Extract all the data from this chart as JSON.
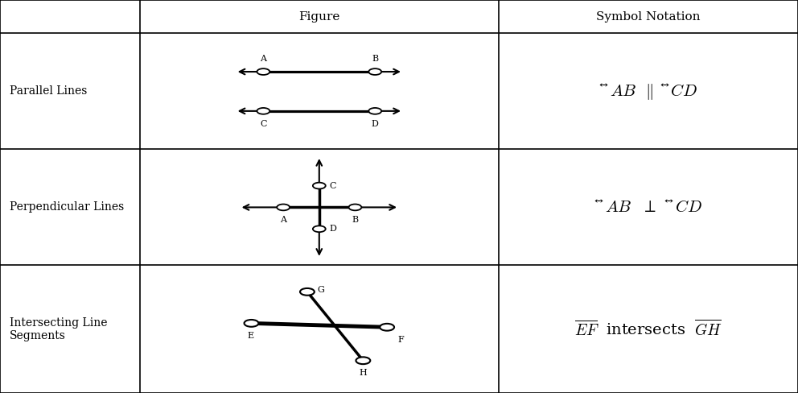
{
  "fig_width": 9.92,
  "fig_height": 4.88,
  "dpi": 100,
  "bg_color": "#ffffff",
  "border_color": "#000000",
  "text_color": "#000000",
  "col_boundaries": [
    0.0,
    0.175,
    0.625,
    1.0
  ],
  "row_tops": [
    1.0,
    0.915,
    0.62,
    0.325,
    0.0
  ],
  "header_labels": [
    "",
    "Figure",
    "Symbol Notation"
  ],
  "row_labels": [
    "Parallel Lines",
    "Perpendicular Lines",
    "Intersecting Line\nSegments"
  ]
}
